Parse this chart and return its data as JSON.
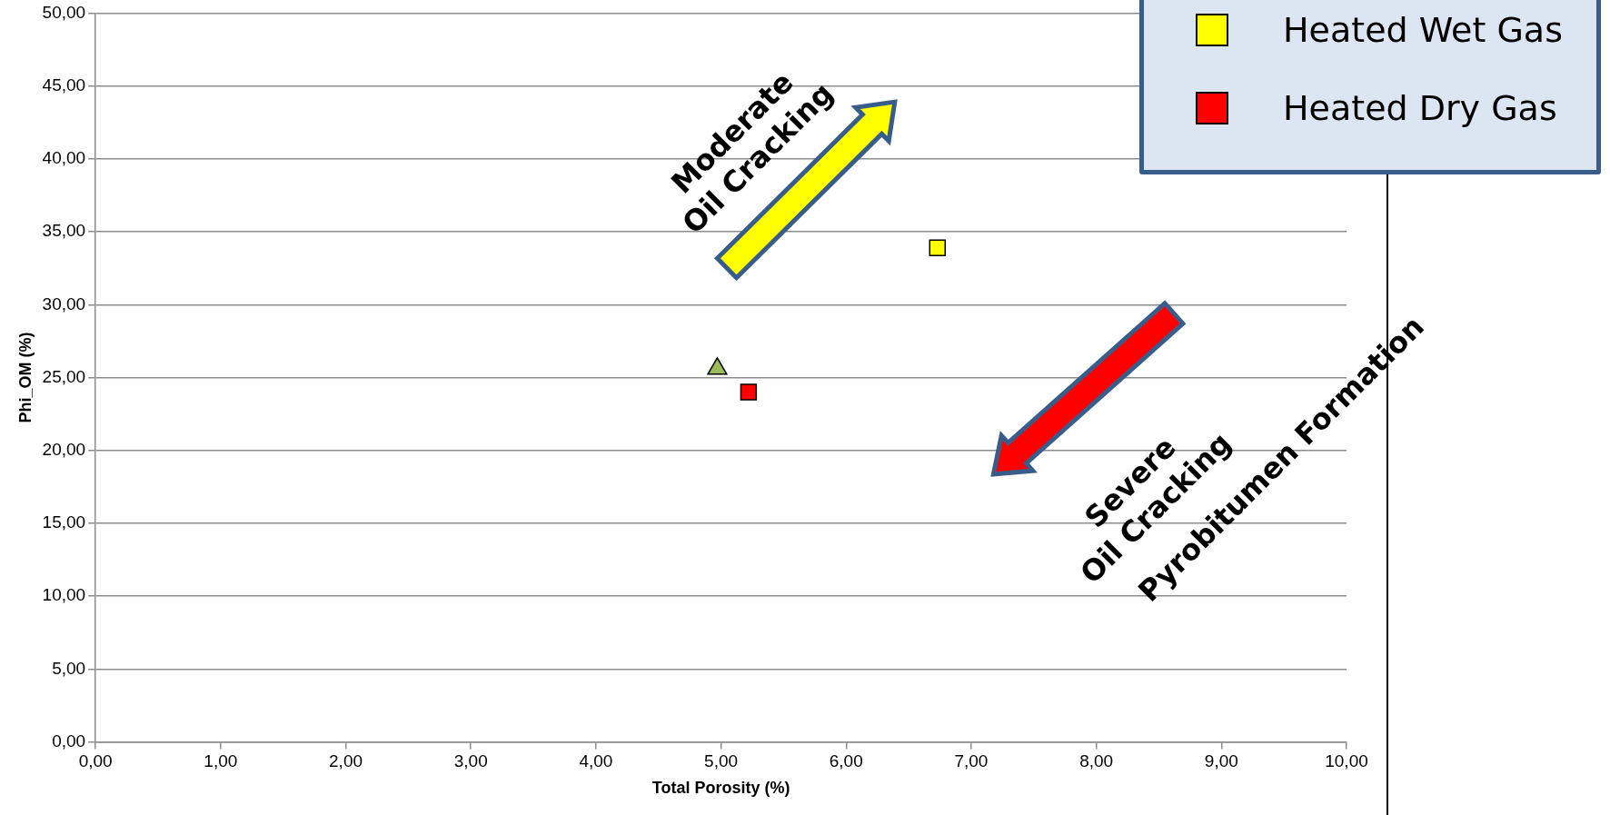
{
  "chart_data": {
    "type": "scatter",
    "xlabel": "Total Porosity (%)",
    "ylabel": "Phi_OM (%)",
    "xlim": [
      0,
      10
    ],
    "ylim": [
      0,
      50
    ],
    "xticks": [
      {
        "value": 0,
        "label": "0,00"
      },
      {
        "value": 1,
        "label": "1,00"
      },
      {
        "value": 2,
        "label": "2,00"
      },
      {
        "value": 3,
        "label": "3,00"
      },
      {
        "value": 4,
        "label": "4,00"
      },
      {
        "value": 5,
        "label": "5,00"
      },
      {
        "value": 6,
        "label": "6,00"
      },
      {
        "value": 7,
        "label": "7,00"
      },
      {
        "value": 8,
        "label": "8,00"
      },
      {
        "value": 9,
        "label": "9,00"
      },
      {
        "value": 10,
        "label": "10,00"
      }
    ],
    "yticks": [
      {
        "value": 0,
        "label": "0,00"
      },
      {
        "value": 5,
        "label": "5,00"
      },
      {
        "value": 10,
        "label": "10,00"
      },
      {
        "value": 15,
        "label": "15,00"
      },
      {
        "value": 20,
        "label": "20,00"
      },
      {
        "value": 25,
        "label": "25,00"
      },
      {
        "value": 30,
        "label": "30,00"
      },
      {
        "value": 35,
        "label": "35,00"
      },
      {
        "value": 40,
        "label": "40,00"
      },
      {
        "value": 45,
        "label": "45,00"
      },
      {
        "value": 50,
        "label": "50,00"
      }
    ],
    "grid": "y",
    "legend": "top right",
    "series": [
      {
        "color": "#9bbb59",
        "marker": "triangle",
        "x": [
          4.97
        ],
        "values": [
          25.6
        ]
      },
      {
        "name": "Heated Wet Gas",
        "color": "#ffff00",
        "marker": "square",
        "x": [
          6.73
        ],
        "values": [
          33.9
        ]
      },
      {
        "name": "Heated Dry Gas",
        "color": "#ff0000",
        "marker": "square",
        "x": [
          5.22
        ],
        "values": [
          24.0
        ]
      }
    ],
    "annotations": [
      "Moderate\nOil Cracking",
      "Severe\nOil Cracking",
      "Pyrobitumen Formation"
    ]
  }
}
